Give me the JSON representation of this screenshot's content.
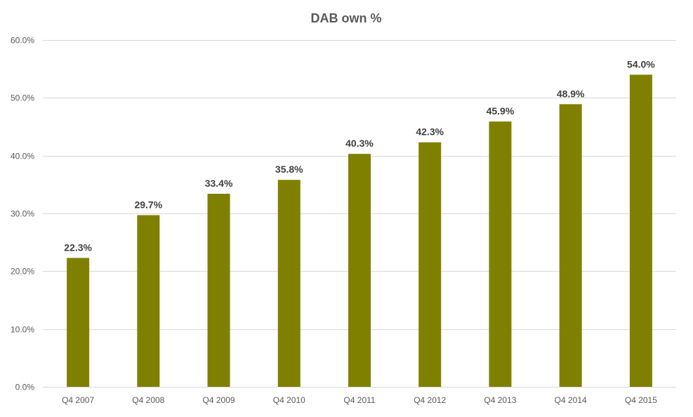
{
  "chart_data": {
    "type": "bar",
    "title": "DAB own %",
    "xlabel": "",
    "ylabel": "",
    "categories": [
      "Q4 2007",
      "Q4 2008",
      "Q4 2009",
      "Q4 2010",
      "Q4 2011",
      "Q4 2012",
      "Q4 2013",
      "Q4 2014",
      "Q4 2015"
    ],
    "values": [
      22.3,
      29.7,
      33.4,
      35.8,
      40.3,
      42.3,
      45.9,
      48.9,
      54.0
    ],
    "data_labels": [
      "22.3%",
      "29.7%",
      "33.4%",
      "35.8%",
      "40.3%",
      "42.3%",
      "45.9%",
      "48.9%",
      "54.0%"
    ],
    "y_ticks": [
      0,
      10,
      20,
      30,
      40,
      50,
      60
    ],
    "y_tick_labels": [
      "0.0%",
      "10.0%",
      "20.0%",
      "30.0%",
      "40.0%",
      "50.0%",
      "60.0%"
    ],
    "ylim": [
      0,
      60
    ],
    "grid": true,
    "legend": "none",
    "bar_color": "#808000"
  }
}
